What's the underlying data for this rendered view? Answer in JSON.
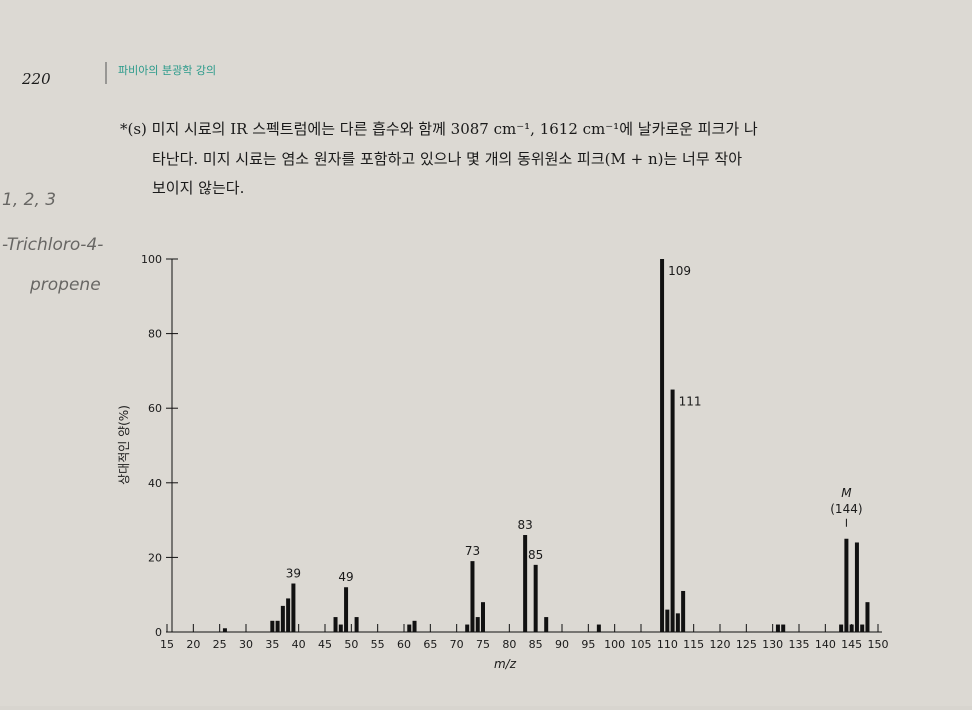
{
  "page": {
    "number": "220",
    "running_head": "파비아의 분광학 강의",
    "problem": [
      "*(s) 미지 시료의 IR 스펙트럼에는 다른 흡수와 함께 3087 cm⁻¹, 1612 cm⁻¹에 날카로운 피크가 나",
      "타난다. 미지 시료는 염소 원자를 포함하고 있으나 몇 개의 동위원소 피크(M + n)는 너무 작아",
      "보이지 않는다."
    ],
    "handwriting": [
      "1, 2, 3",
      "-Trichloro-4-",
      "propene"
    ]
  },
  "chart_data": {
    "type": "bar",
    "xlabel": "m/z",
    "ylabel": "상대적인 양(%)",
    "color": "#111111",
    "x": [
      26,
      35,
      36,
      37,
      38,
      39,
      47,
      48,
      49,
      51,
      61,
      62,
      72,
      73,
      74,
      75,
      83,
      85,
      87,
      97,
      109,
      110,
      111,
      112,
      113,
      131,
      132,
      143,
      144,
      145,
      146,
      147,
      148
    ],
    "values": [
      1,
      3,
      3,
      7,
      9,
      13,
      4,
      2,
      12,
      4,
      2,
      3,
      2,
      19,
      4,
      8,
      26,
      18,
      4,
      2,
      100,
      6,
      65,
      5,
      11,
      2,
      2,
      2,
      25,
      2,
      24,
      2,
      8
    ],
    "labeled_x": [
      39,
      49,
      73,
      83,
      85,
      109,
      111
    ],
    "molecular_ion": {
      "symbol": "M",
      "label": "(144)",
      "x": 144
    },
    "xlim": [
      15,
      150
    ],
    "xticks": [
      15,
      20,
      25,
      30,
      35,
      40,
      45,
      50,
      55,
      60,
      65,
      70,
      75,
      80,
      85,
      90,
      95,
      100,
      105,
      110,
      115,
      120,
      125,
      130,
      135,
      140,
      145,
      150
    ],
    "ylim": [
      0,
      100
    ],
    "yticks": [
      0,
      20,
      40,
      60,
      80,
      100
    ]
  }
}
